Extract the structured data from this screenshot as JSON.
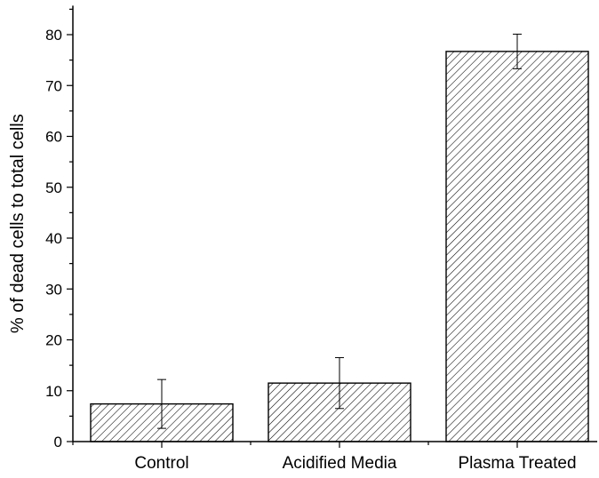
{
  "chart_data": {
    "type": "bar",
    "title": "",
    "xlabel": "",
    "ylabel": "% of dead cells to total cells",
    "categories": [
      "Control",
      "Acidified Media",
      "Plasma Treated"
    ],
    "values": [
      7.4,
      11.5,
      76.7
    ],
    "error": [
      4.8,
      5.0,
      3.4
    ],
    "ylim": [
      0,
      85
    ],
    "yticks": [
      0,
      10,
      20,
      30,
      40,
      50,
      60,
      70,
      80
    ],
    "ytick_labels": [
      "0",
      "10",
      "20",
      "30",
      "40",
      "50",
      "60",
      "70",
      "80"
    ],
    "yminor_step": 5,
    "grid": false,
    "legend": "none",
    "bar_fill": "diagonal hatch",
    "colors": {
      "bar_stroke": "#000000",
      "hatch": "#000000",
      "background": "#ffffff"
    }
  }
}
